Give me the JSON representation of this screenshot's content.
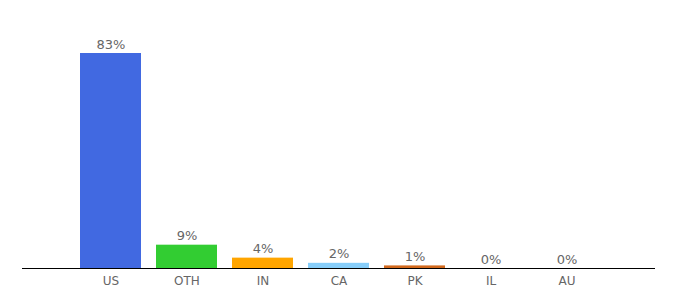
{
  "chart_data": {
    "type": "bar",
    "categories": [
      "US",
      "OTH",
      "IN",
      "CA",
      "PK",
      "IL",
      "AU"
    ],
    "values": [
      83,
      9,
      4,
      2,
      1,
      0,
      0
    ],
    "value_labels": [
      "83%",
      "9%",
      "4%",
      "2%",
      "1%",
      "0%",
      "0%"
    ],
    "colors": [
      "#4169e1",
      "#32cd32",
      "#ffa500",
      "#87cefa",
      "#d2691e",
      "#a0a0a0",
      "#a0a0a0"
    ],
    "data_labels": true,
    "tick_labels": "x",
    "grid": false
  }
}
